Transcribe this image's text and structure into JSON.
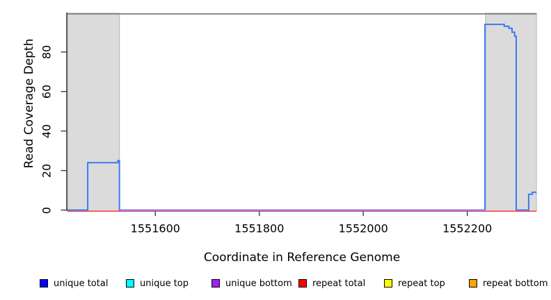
{
  "chart_data": {
    "type": "line",
    "subtype": "step-coverage-plot",
    "title": "",
    "xlabel": "Coordinate in Reference Genome",
    "ylabel": "Read Coverage Depth",
    "xlim": [
      1551431,
      1552333
    ],
    "ylim": [
      0,
      100
    ],
    "grid": false,
    "x_ticks": [
      {
        "value": 1551600,
        "label": "1551600"
      },
      {
        "value": 1551800,
        "label": "1551800"
      },
      {
        "value": 1552000,
        "label": "1552000"
      },
      {
        "value": 1552200,
        "label": "1552200"
      }
    ],
    "y_ticks": [
      {
        "value": 0,
        "label": "0"
      },
      {
        "value": 20,
        "label": "20"
      },
      {
        "value": 40,
        "label": "40"
      },
      {
        "value": 60,
        "label": "60"
      },
      {
        "value": 80,
        "label": "80"
      }
    ],
    "shaded_regions": [
      {
        "x_start": 1551431,
        "x_end": 1551531
      },
      {
        "x_start": 1552235,
        "x_end": 1552333
      }
    ],
    "series": [
      {
        "name": "unique total",
        "color": "#3D79F0",
        "type": "step",
        "points": [
          [
            1551431,
            0
          ],
          [
            1551470,
            0
          ],
          [
            1551470,
            24
          ],
          [
            1551528,
            24
          ],
          [
            1551528,
            25
          ],
          [
            1551531,
            25
          ],
          [
            1551531,
            0
          ],
          [
            1552234,
            0
          ],
          [
            1552234,
            94
          ],
          [
            1552271,
            94
          ],
          [
            1552271,
            93
          ],
          [
            1552280,
            93
          ],
          [
            1552280,
            92
          ],
          [
            1552286,
            92
          ],
          [
            1552286,
            90
          ],
          [
            1552291,
            90
          ],
          [
            1552291,
            88
          ],
          [
            1552294,
            88
          ],
          [
            1552294,
            0
          ],
          [
            1552318,
            0
          ],
          [
            1552318,
            8
          ],
          [
            1552325,
            8
          ],
          [
            1552325,
            9
          ],
          [
            1552333,
            9
          ]
        ]
      },
      {
        "name": "unique bottom",
        "color": "#8F7BE8",
        "type": "constant",
        "value": 0,
        "x_range": [
          1551531,
          1552235
        ]
      },
      {
        "name": "repeat total",
        "color": "#FF5252",
        "type": "constant",
        "value": 0,
        "x_range": [
          1551431,
          1552333
        ]
      }
    ],
    "style_colors": {
      "shade_fill": "#DBDBDB",
      "shade_border": "#B3B3B3",
      "top_border": "#8A8A8A",
      "axis": "#3F3F3F"
    }
  },
  "legend": {
    "items": [
      {
        "label": "unique total",
        "color": "#0000FF"
      },
      {
        "label": "unique top",
        "color": "#00FFFF"
      },
      {
        "label": "unique bottom",
        "color": "#A020F0"
      },
      {
        "label": "repeat total",
        "color": "#FF0000"
      },
      {
        "label": "repeat top",
        "color": "#FFFF00"
      },
      {
        "label": "repeat bottom",
        "color": "#FFA500"
      }
    ]
  }
}
